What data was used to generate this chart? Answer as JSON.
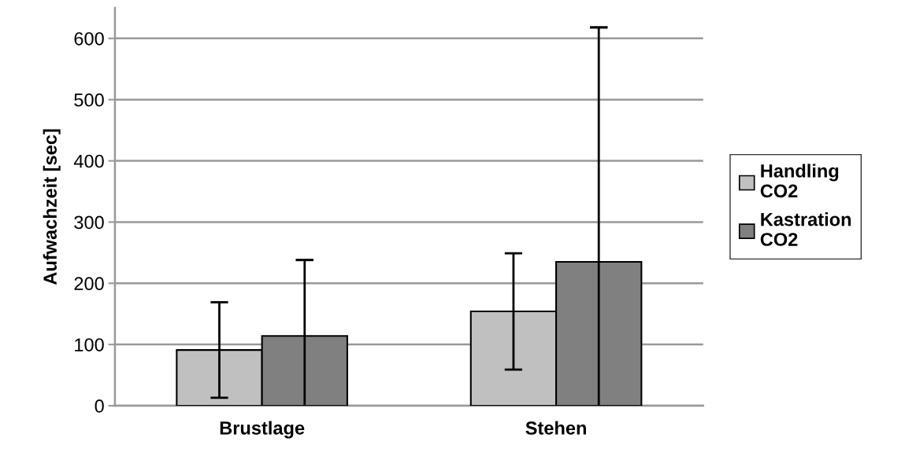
{
  "chart_data": {
    "type": "bar",
    "ylabel": "Aufwachzeit [sec]",
    "categories": [
      "Brustlage",
      "Stehen"
    ],
    "series": [
      {
        "name": "Handling\nCO2",
        "color": "#c0c0c0",
        "values": [
          91,
          154
        ],
        "errors": [
          [
            13,
            169
          ],
          [
            59,
            249
          ]
        ]
      },
      {
        "name": "Kastration\nCO2",
        "color": "#808080",
        "values": [
          114,
          235
        ],
        "errors": [
          [
            0,
            238
          ],
          [
            0,
            618
          ]
        ]
      }
    ],
    "ylim": [
      0,
      650
    ],
    "yticks": [
      0,
      100,
      200,
      300,
      400,
      500,
      600
    ],
    "grid": "y",
    "legend": "right"
  }
}
